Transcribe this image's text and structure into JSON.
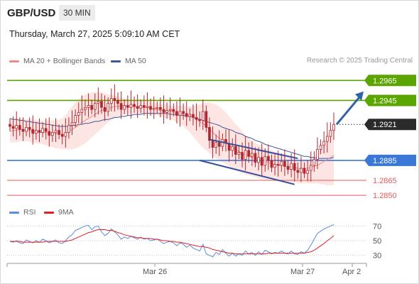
{
  "header": {
    "symbol": "GBP/USD",
    "timeframe": "30 MIN",
    "datetime": "Thursday, March 27, 2025 5:09:10 AM CET"
  },
  "legend": {
    "ma20": "MA 20 + Bollinger Bands",
    "ma50": "MA 50",
    "credit": "Research © 2025 Trading Central",
    "rsi": "RSI",
    "rsi_ma": "9MA"
  },
  "colors": {
    "green_level": "#5aa500",
    "blue_level": "#3a78d8",
    "red_level": "#e85a5a",
    "ma20": "#f08a8a",
    "ma50": "#3b5a9a",
    "bollinger_fill": "#fde0df",
    "candle": "#b3262e",
    "channel": "#34509a",
    "arrow": "#2f63a8",
    "rsi": "#5b8de0",
    "rsi_ma": "#e02020"
  },
  "chart_data": [
    {
      "type": "candlestick",
      "title": "GBP/USD 30 MIN",
      "x_ticks": [
        "Mar 26",
        "Mar 27",
        "Apr 2"
      ],
      "ylim": [
        1.2843,
        1.2978
      ],
      "levels": [
        {
          "value": 1.2965,
          "label": "1.2965",
          "kind": "resistance",
          "color": "green"
        },
        {
          "value": 1.2945,
          "label": "1.2945",
          "kind": "resistance",
          "color": "green"
        },
        {
          "value": 1.2921,
          "label": "1.2921",
          "kind": "last",
          "color": "dark"
        },
        {
          "value": 1.2885,
          "label": "1.2885",
          "kind": "pivot",
          "color": "blue"
        },
        {
          "value": 1.2865,
          "label": "1.2865",
          "kind": "support",
          "color": "red"
        },
        {
          "value": 1.285,
          "label": "1.2850",
          "kind": "support",
          "color": "red"
        }
      ],
      "close_series": [
        1.2919,
        1.2917,
        1.292,
        1.2916,
        1.2914,
        1.2918,
        1.2916,
        1.2912,
        1.2915,
        1.2913,
        1.2917,
        1.2914,
        1.291,
        1.2913,
        1.2915,
        1.2911,
        1.2909,
        1.2913,
        1.292,
        1.2923,
        1.293,
        1.2933,
        1.2936,
        1.2938,
        1.294,
        1.2936,
        1.2942,
        1.2944,
        1.2938,
        1.2934,
        1.2942,
        1.2947,
        1.2945,
        1.2942,
        1.2936,
        1.294,
        1.2938,
        1.2941,
        1.2939,
        1.2937,
        1.294,
        1.2938,
        1.2939,
        1.2936,
        1.2937,
        1.2938,
        1.2936,
        1.2933,
        1.2935,
        1.2936,
        1.2934,
        1.293,
        1.2934,
        1.2932,
        1.2929,
        1.2931,
        1.2928,
        1.2926,
        1.2925,
        1.2934,
        1.2918,
        1.2905,
        1.2898,
        1.2903,
        1.2899,
        1.2906,
        1.2902,
        1.2895,
        1.2899,
        1.2891,
        1.2893,
        1.2886,
        1.2895,
        1.2889,
        1.2892,
        1.2883,
        1.2888,
        1.288,
        1.2889,
        1.2885,
        1.2878,
        1.2881,
        1.288,
        1.2884,
        1.2879,
        1.2876,
        1.2882,
        1.2875,
        1.2873,
        1.2877,
        1.2872,
        1.2875,
        1.288,
        1.2886,
        1.2896,
        1.29,
        1.2904,
        1.2909,
        1.2915,
        1.2921
      ],
      "ma20": [
        1.2914,
        1.2915,
        1.2915,
        1.2916,
        1.2916,
        1.2915,
        1.2915,
        1.2914,
        1.2914,
        1.2913,
        1.2913,
        1.2913,
        1.2912,
        1.2912,
        1.2912,
        1.2911,
        1.2911,
        1.2912,
        1.2914,
        1.2916,
        1.2918,
        1.292,
        1.2923,
        1.2925,
        1.2927,
        1.2929,
        1.2931,
        1.2933,
        1.2935,
        1.2936,
        1.2937,
        1.2938,
        1.2939,
        1.2939,
        1.2939,
        1.2939,
        1.2939,
        1.2939,
        1.2939,
        1.2938,
        1.2938,
        1.2938,
        1.2938,
        1.2937,
        1.2937,
        1.2936,
        1.2935,
        1.2935,
        1.2934,
        1.2934,
        1.2933,
        1.2932,
        1.2932,
        1.2931,
        1.293,
        1.2929,
        1.2928,
        1.2926,
        1.2924,
        1.2922,
        1.2919,
        1.2916,
        1.2913,
        1.291,
        1.2907,
        1.2905,
        1.2903,
        1.29,
        1.2898,
        1.2896,
        1.2894,
        1.2892,
        1.289,
        1.2889,
        1.2888,
        1.2887,
        1.2886,
        1.2885,
        1.2884,
        1.2883,
        1.2882,
        1.2881,
        1.288,
        1.288,
        1.2879,
        1.2879,
        1.2878,
        1.2878,
        1.2877,
        1.2877,
        1.2877,
        1.2877,
        1.2878,
        1.2879,
        1.288,
        1.2882,
        1.2884,
        1.2886,
        1.2888,
        1.289
      ],
      "ma50": [
        1.2927,
        1.2926,
        1.2926,
        1.2925,
        1.2925,
        1.2924,
        1.2924,
        1.2923,
        1.2923,
        1.2922,
        1.2922,
        1.2921,
        1.2921,
        1.292,
        1.292,
        1.2919,
        1.2919,
        1.2919,
        1.2919,
        1.292,
        1.292,
        1.2921,
        1.2921,
        1.2922,
        1.2922,
        1.2923,
        1.2924,
        1.2924,
        1.2925,
        1.2926,
        1.2926,
        1.2927,
        1.2928,
        1.2928,
        1.2929,
        1.2929,
        1.293,
        1.293,
        1.2931,
        1.2931,
        1.2931,
        1.2932,
        1.2932,
        1.2932,
        1.2932,
        1.2932,
        1.2932,
        1.2932,
        1.2932,
        1.2931,
        1.2931,
        1.2931,
        1.293,
        1.293,
        1.2929,
        1.2929,
        1.2928,
        1.2927,
        1.2926,
        1.2925,
        1.2924,
        1.2923,
        1.2922,
        1.2921,
        1.292,
        1.2918,
        1.2917,
        1.2916,
        1.2915,
        1.2913,
        1.2912,
        1.2911,
        1.2909,
        1.2908,
        1.2907,
        1.2905,
        1.2904,
        1.2903,
        1.2901,
        1.29,
        1.2899,
        1.2898,
        1.2897,
        1.2896,
        1.2895,
        1.2894,
        1.2893,
        1.2892,
        1.2891,
        1.289,
        1.2889,
        1.2889,
        1.2888,
        1.2888,
        1.2887,
        1.2887,
        1.2887,
        1.2887,
        1.2887,
        1.2888
      ],
      "bollinger_upper": [
        1.2926,
        1.2926,
        1.2927,
        1.2927,
        1.2927,
        1.2926,
        1.2926,
        1.2926,
        1.2925,
        1.2925,
        1.2925,
        1.2925,
        1.2925,
        1.2925,
        1.2925,
        1.2926,
        1.2927,
        1.293,
        1.2935,
        1.2939,
        1.2943,
        1.2946,
        1.2949,
        1.2951,
        1.2952,
        1.2953,
        1.2953,
        1.2953,
        1.2953,
        1.2952,
        1.2951,
        1.2951,
        1.295,
        1.2949,
        1.2948,
        1.2947,
        1.2946,
        1.2945,
        1.2945,
        1.2944,
        1.2944,
        1.2944,
        1.2944,
        1.2943,
        1.2943,
        1.2942,
        1.2942,
        1.2941,
        1.2941,
        1.294,
        1.294,
        1.294,
        1.294,
        1.2939,
        1.2939,
        1.2939,
        1.2939,
        1.294,
        1.2941,
        1.2942,
        1.2943,
        1.2943,
        1.2942,
        1.2941,
        1.2939,
        1.2936,
        1.2933,
        1.2929,
        1.2925,
        1.2921,
        1.2918,
        1.2914,
        1.2911,
        1.2908,
        1.2905,
        1.2903,
        1.2901,
        1.2899,
        1.2897,
        1.2896,
        1.2895,
        1.2893,
        1.2892,
        1.2891,
        1.289,
        1.2889,
        1.2888,
        1.2887,
        1.2886,
        1.2886,
        1.2886,
        1.2886,
        1.2887,
        1.2889,
        1.2892,
        1.2897,
        1.2903,
        1.291,
        1.2915,
        1.2918
      ],
      "bollinger_lower": [
        1.2903,
        1.2903,
        1.2903,
        1.2904,
        1.2904,
        1.2904,
        1.2904,
        1.2903,
        1.2902,
        1.2902,
        1.2901,
        1.29,
        1.2899,
        1.2898,
        1.2897,
        1.2897,
        1.2896,
        1.2896,
        1.2896,
        1.2896,
        1.2897,
        1.2898,
        1.29,
        1.2902,
        1.2905,
        1.2908,
        1.2911,
        1.2914,
        1.2917,
        1.292,
        1.2923,
        1.2925,
        1.2927,
        1.2929,
        1.293,
        1.2931,
        1.2931,
        1.2932,
        1.2932,
        1.2932,
        1.2932,
        1.2932,
        1.2932,
        1.2931,
        1.2931,
        1.293,
        1.2929,
        1.2928,
        1.2927,
        1.2926,
        1.2925,
        1.2923,
        1.2921,
        1.2919,
        1.2916,
        1.2913,
        1.2909,
        1.2905,
        1.2901,
        1.2898,
        1.2895,
        1.2892,
        1.2889,
        1.2887,
        1.2885,
        1.2883,
        1.2881,
        1.2879,
        1.2877,
        1.2875,
        1.2874,
        1.2872,
        1.2871,
        1.287,
        1.2869,
        1.2868,
        1.2867,
        1.2866,
        1.2866,
        1.2865,
        1.2865,
        1.2864,
        1.2864,
        1.2864,
        1.2864,
        1.2863,
        1.2863,
        1.2863,
        1.2862,
        1.2862,
        1.2862,
        1.2862,
        1.2862,
        1.2862,
        1.2862,
        1.2861,
        1.2861,
        1.286,
        1.286,
        1.286
      ],
      "channel": {
        "upper": [
          [
            1.2906,
            61
          ],
          [
            1.2887,
            88
          ]
        ],
        "lower": [
          [
            1.2885,
            58
          ],
          [
            1.2861,
            87
          ]
        ]
      },
      "projection": {
        "from": 1.2921,
        "to": 1.2954
      }
    },
    {
      "type": "line",
      "title": "RSI",
      "ylim": [
        20,
        80
      ],
      "y_ticks": [
        70,
        50,
        30
      ],
      "series": [
        {
          "name": "RSI",
          "values": [
            49,
            48,
            50,
            47,
            46,
            51,
            49,
            47,
            50,
            48,
            52,
            50,
            47,
            49,
            51,
            47,
            46,
            50,
            55,
            58,
            64,
            66,
            68,
            70,
            71,
            65,
            69,
            70,
            62,
            57,
            60,
            66,
            62,
            58,
            52,
            55,
            53,
            56,
            54,
            52,
            55,
            52,
            53,
            50,
            51,
            52,
            49,
            46,
            48,
            49,
            47,
            43,
            47,
            45,
            41,
            44,
            40,
            38,
            36,
            45,
            32,
            30,
            28,
            34,
            31,
            38,
            33,
            29,
            33,
            29,
            32,
            30,
            36,
            32,
            34,
            30,
            35,
            31,
            37,
            35,
            32,
            34,
            33,
            36,
            33,
            32,
            36,
            32,
            31,
            35,
            33,
            37,
            44,
            52,
            60,
            63,
            66,
            68,
            70,
            72
          ]
        },
        {
          "name": "9MA",
          "values": [
            49,
            49,
            49,
            49,
            48,
            48,
            48,
            48,
            48,
            48,
            48,
            49,
            49,
            49,
            49,
            49,
            49,
            49,
            50,
            51,
            53,
            55,
            57,
            59,
            61,
            62,
            64,
            65,
            65,
            65,
            64,
            64,
            63,
            61,
            60,
            58,
            57,
            56,
            55,
            54,
            54,
            53,
            53,
            53,
            52,
            52,
            51,
            50,
            50,
            49,
            49,
            48,
            48,
            47,
            46,
            45,
            44,
            43,
            42,
            42,
            41,
            40,
            38,
            37,
            36,
            35,
            34,
            33,
            33,
            32,
            32,
            32,
            32,
            32,
            32,
            32,
            32,
            32,
            32,
            33,
            33,
            33,
            33,
            33,
            33,
            33,
            33,
            33,
            33,
            33,
            33,
            34,
            35,
            37,
            40,
            43,
            46,
            50,
            53,
            57
          ]
        }
      ]
    }
  ]
}
